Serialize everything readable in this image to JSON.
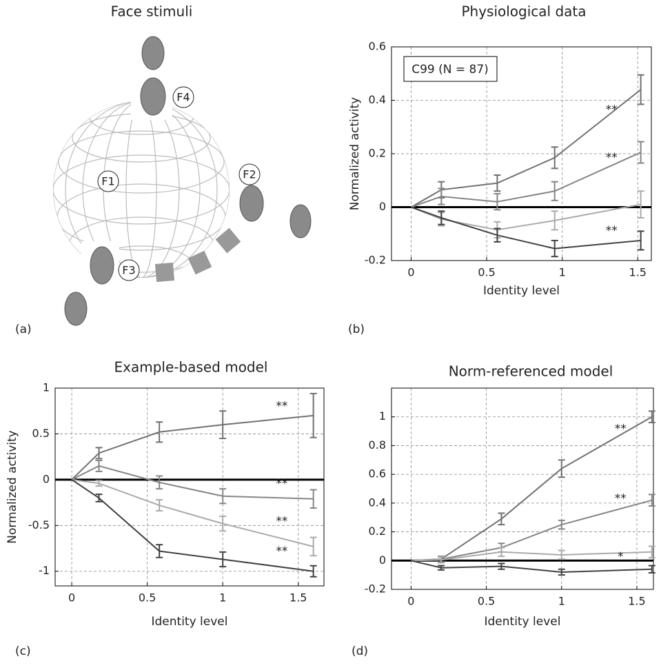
{
  "diagram": {
    "title": "Face stimuli",
    "panel_label": "(a)",
    "labels": [
      "F1",
      "F2",
      "F3",
      "F4"
    ]
  },
  "chart_data": [
    {
      "type": "line",
      "panel_label": "(b)",
      "title": "Physiological data",
      "x_label": "Identity level",
      "y_label": "Normalized activity",
      "inset_label": "C99 (N = 87)",
      "grid": true,
      "zero_line": true,
      "xlim": [
        -0.13,
        1.59
      ],
      "ylim": [
        -0.2,
        0.6
      ],
      "xticks": [
        0,
        0.5,
        1,
        1.5
      ],
      "yticks": [
        -0.2,
        0,
        0.2,
        0.4,
        0.6
      ],
      "x": [
        0,
        0.2,
        0.57,
        0.95,
        1.52
      ],
      "series": [
        {
          "color": "#707070",
          "values": [
            0,
            0.065,
            0.09,
            0.185,
            0.44
          ],
          "errors": [
            null,
            0.03,
            0.03,
            0.04,
            0.055
          ],
          "annotation": "**"
        },
        {
          "color": "#858585",
          "values": [
            0,
            0.04,
            0.02,
            0.06,
            0.205
          ],
          "errors": [
            null,
            0.03,
            0.03,
            0.035,
            0.04
          ],
          "annotation": "**"
        },
        {
          "color": "#aaaaaa",
          "values": [
            0,
            -0.045,
            -0.085,
            -0.05,
            0.01
          ],
          "errors": [
            null,
            0.025,
            0.03,
            0.035,
            0.05
          ]
        },
        {
          "color": "#404040",
          "values": [
            0,
            -0.04,
            -0.105,
            -0.155,
            -0.125
          ],
          "errors": [
            null,
            0.025,
            0.025,
            0.03,
            0.035
          ],
          "annotation": "**"
        }
      ]
    },
    {
      "type": "line",
      "panel_label": "(c)",
      "title": "Example-based model",
      "x_label": "Identity level",
      "y_label": "Normalized activity",
      "grid": true,
      "zero_line": true,
      "xlim": [
        -0.11,
        1.67
      ],
      "ylim": [
        -1.16,
        1
      ],
      "xticks": [
        0,
        0.5,
        1,
        1.5
      ],
      "yticks": [
        -1,
        -0.5,
        0,
        0.5,
        1
      ],
      "x": [
        0,
        0.18,
        0.58,
        1.0,
        1.6
      ],
      "series": [
        {
          "color": "#707070",
          "values": [
            0,
            0.29,
            0.52,
            0.6,
            0.7
          ],
          "errors": [
            null,
            0.06,
            0.11,
            0.15,
            0.24
          ],
          "annotation": "**"
        },
        {
          "color": "#858585",
          "values": [
            0,
            0.15,
            -0.03,
            -0.18,
            -0.21
          ],
          "errors": [
            null,
            0.06,
            0.07,
            0.08,
            0.1
          ],
          "annotation": "**"
        },
        {
          "color": "#aaaaaa",
          "values": [
            0,
            -0.04,
            -0.28,
            -0.48,
            -0.73
          ],
          "errors": [
            null,
            0.03,
            0.06,
            0.08,
            0.1
          ],
          "annotation": "**"
        },
        {
          "color": "#404040",
          "values": [
            0,
            -0.2,
            -0.78,
            -0.87,
            -1.0
          ],
          "errors": [
            null,
            0.04,
            0.07,
            0.08,
            0.06
          ],
          "annotation": "**"
        }
      ]
    },
    {
      "type": "line",
      "panel_label": "(d)",
      "title": "Norm-referenced model",
      "x_label": "Identity level",
      "grid": true,
      "zero_line": true,
      "xlim": [
        -0.13,
        1.61
      ],
      "ylim": [
        -0.2,
        1.2
      ],
      "xticks": [
        0,
        0.5,
        1,
        1.5
      ],
      "yticks": [
        -0.2,
        0,
        0.2,
        0.4,
        0.6,
        0.8,
        1
      ],
      "x": [
        0,
        0.2,
        0.6,
        1.0,
        1.6
      ],
      "series": [
        {
          "color": "#707070",
          "values": [
            0,
            0.01,
            0.29,
            0.64,
            1.0
          ],
          "errors": [
            null,
            0.02,
            0.04,
            0.06,
            0.04
          ],
          "annotation": "**"
        },
        {
          "color": "#858585",
          "values": [
            0,
            0.01,
            0.09,
            0.25,
            0.42
          ],
          "errors": [
            null,
            0.02,
            0.03,
            0.03,
            0.04
          ],
          "annotation": "**"
        },
        {
          "color": "#aaaaaa",
          "values": [
            0,
            0.005,
            0.06,
            0.04,
            0.06
          ],
          "errors": [
            null,
            0.02,
            0.03,
            0.03,
            0.04
          ]
        },
        {
          "color": "#404040",
          "values": [
            0,
            -0.05,
            -0.04,
            -0.08,
            -0.06
          ],
          "errors": [
            null,
            0.015,
            0.02,
            0.02,
            0.025
          ],
          "annotation": "*"
        }
      ]
    }
  ]
}
